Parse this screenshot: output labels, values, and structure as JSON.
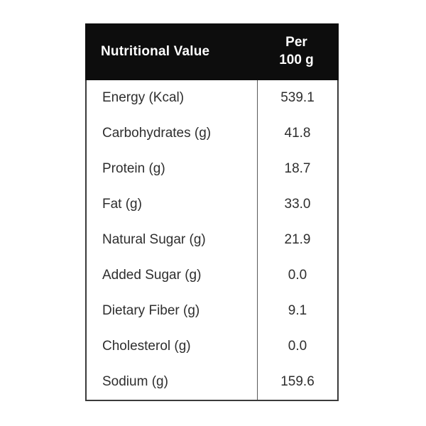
{
  "header": {
    "title": "Nutritional Value",
    "per_line1": "Per",
    "per_line2": "100 g"
  },
  "rows": [
    {
      "label": "Energy (Kcal)",
      "value": "539.1"
    },
    {
      "label": "Carbohydrates (g)",
      "value": "41.8"
    },
    {
      "label": "Protein (g)",
      "value": "18.7"
    },
    {
      "label": "Fat (g)",
      "value": "33.0"
    },
    {
      "label": "Natural Sugar (g)",
      "value": "21.9"
    },
    {
      "label": "Added Sugar (g)",
      "value": "0.0"
    },
    {
      "label": "Dietary Fiber (g)",
      "value": "9.1"
    },
    {
      "label": "Cholesterol (g)",
      "value": "0.0"
    },
    {
      "label": "Sodium (g)",
      "value": "159.6"
    }
  ],
  "colors": {
    "header_background": "#0d0d0d",
    "header_text": "#ffffff",
    "body_text": "#2e2e2e",
    "outer_border": "#3b3b3b",
    "column_divider": "#5a5a5a",
    "page_background": "#ffffff"
  },
  "chart_data": {
    "type": "table",
    "title": "Nutritional Value",
    "columns": [
      "Nutritional Value",
      "Per 100 g"
    ],
    "categories": [
      "Energy (Kcal)",
      "Carbohydrates (g)",
      "Protein (g)",
      "Fat (g)",
      "Natural Sugar (g)",
      "Added Sugar (g)",
      "Dietary Fiber (g)",
      "Cholesterol (g)",
      "Sodium (g)"
    ],
    "values": [
      539.1,
      41.8,
      18.7,
      33.0,
      21.9,
      0.0,
      9.1,
      0.0,
      159.6
    ]
  }
}
